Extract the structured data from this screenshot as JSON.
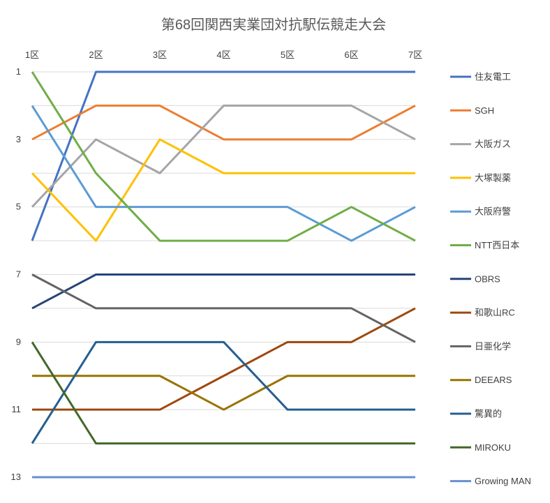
{
  "chart_data": {
    "type": "line",
    "title": "第68回関西実業団対抗駅伝競走大会",
    "categories": [
      "1区",
      "2区",
      "3区",
      "4区",
      "5区",
      "6区",
      "7区"
    ],
    "y_ticks": [
      "1",
      "3",
      "5",
      "7",
      "9",
      "11",
      "13"
    ],
    "ylim": [
      1,
      13
    ],
    "y_reversed": true,
    "grid": "horizontal",
    "legend_position": "right",
    "series": [
      {
        "name": "住友電工",
        "color": "#4472c4",
        "values": [
          6,
          1,
          1,
          1,
          1,
          1,
          1
        ]
      },
      {
        "name": "SGH",
        "color": "#ed7d31",
        "values": [
          3,
          2,
          2,
          3,
          3,
          3,
          2
        ]
      },
      {
        "name": "大阪ガス",
        "color": "#a5a5a5",
        "values": [
          5,
          3,
          4,
          2,
          2,
          2,
          3
        ]
      },
      {
        "name": "大塚製薬",
        "color": "#ffc000",
        "values": [
          4,
          6,
          3,
          4,
          4,
          4,
          4
        ]
      },
      {
        "name": "大阪府警",
        "color": "#5b9bd5",
        "values": [
          2,
          5,
          5,
          5,
          5,
          6,
          5
        ]
      },
      {
        "name": "NTT西日本",
        "color": "#70ad47",
        "values": [
          1,
          4,
          6,
          6,
          6,
          5,
          6
        ]
      },
      {
        "name": "OBRS",
        "color": "#264478",
        "values": [
          8,
          7,
          7,
          7,
          7,
          7,
          7
        ]
      },
      {
        "name": "和歌山RC",
        "color": "#9e480e",
        "values": [
          11,
          11,
          11,
          10,
          9,
          9,
          8
        ]
      },
      {
        "name": "日亜化学",
        "color": "#636363",
        "values": [
          7,
          8,
          8,
          8,
          8,
          8,
          9
        ]
      },
      {
        "name": "DEEARS",
        "color": "#997300",
        "values": [
          10,
          10,
          10,
          11,
          10,
          10,
          10
        ]
      },
      {
        "name": "驚異的",
        "color": "#255e91",
        "values": [
          12,
          9,
          9,
          9,
          11,
          11,
          11
        ]
      },
      {
        "name": "MIROKU",
        "color": "#43682b",
        "values": [
          9,
          12,
          12,
          12,
          12,
          12,
          12
        ]
      },
      {
        "name": "Growing MAN",
        "color": "#698ed0",
        "values": [
          13,
          13,
          13,
          13,
          13,
          13,
          13
        ]
      }
    ]
  }
}
